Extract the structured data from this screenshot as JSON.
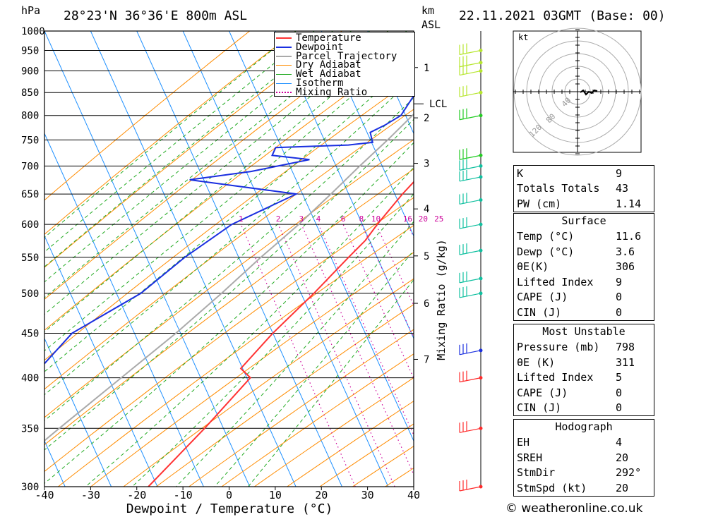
{
  "header": {
    "pressure_unit": "hPa",
    "location": "28°23'N  36°36'E  800m  ASL",
    "height_unit_km": "km",
    "height_unit_asl": "ASL",
    "datetime": "22.11.2021  03GMT  (Base: 00)"
  },
  "footer": {
    "copyright": "© weatheronline.co.uk"
  },
  "colors": {
    "temperature": "#ff3333",
    "dewpoint": "#1a2fe0",
    "parcel": "#aaaaaa",
    "dry_adiabat": "#ff8c00",
    "wet_adiabat": "#22aa22",
    "isotherm": "#1e90ff",
    "mixing_ratio": "#cc0099"
  },
  "chart_data": {
    "type": "skew-t",
    "xlabel": "Dewpoint / Temperature (°C)",
    "ylabel_left": "hPa",
    "mixing_ratio_label": "Mixing Ratio (g/kg)",
    "xlim": [
      -40,
      40
    ],
    "ylim": [
      1000,
      300
    ],
    "x_ticks": [
      "-40",
      "-30",
      "-20",
      "-10",
      "0",
      "10",
      "20",
      "30",
      "40"
    ],
    "pressure_levels": [
      300,
      350,
      400,
      450,
      500,
      550,
      600,
      650,
      700,
      750,
      800,
      850,
      900,
      950,
      1000
    ],
    "height_ticks_km": [
      "1",
      "2",
      "3",
      "4",
      "5",
      "6",
      "7"
    ],
    "height_tick_pressures": [
      908,
      795,
      705,
      625,
      552,
      487,
      420
    ],
    "lcl_label": "LCL",
    "lcl_pressure": 825,
    "mixing_ratio_values": [
      "1",
      "2",
      "3",
      "4",
      "6",
      "8",
      "10",
      "16",
      "20",
      "25"
    ],
    "legend": [
      "Temperature",
      "Dewpoint",
      "Parcel Trajectory",
      "Dry Adiabat",
      "Wet Adiabat",
      "Isotherm",
      "Mixing Ratio"
    ],
    "series": [
      {
        "name": "Temperature",
        "points": [
          [
            920,
            15.5
          ],
          [
            900,
            15.0
          ],
          [
            850,
            13.0
          ],
          [
            800,
            10.5
          ],
          [
            770,
            9.5
          ],
          [
            750,
            9.0
          ],
          [
            735,
            8.5
          ],
          [
            720,
            10.5
          ],
          [
            700,
            11.0
          ],
          [
            675,
            10.5
          ],
          [
            650,
            9.0
          ],
          [
            600,
            6.5
          ],
          [
            575,
            5.5
          ],
          [
            550,
            3.5
          ],
          [
            500,
            -0.5
          ],
          [
            450,
            -5.5
          ],
          [
            410,
            -9.0
          ],
          [
            400,
            -6.0
          ],
          [
            350,
            -11.0
          ],
          [
            300,
            -17.5
          ]
        ]
      },
      {
        "name": "Dewpoint",
        "points": [
          [
            920,
            5.5
          ],
          [
            900,
            5.0
          ],
          [
            850,
            2.0
          ],
          [
            800,
            1.0
          ],
          [
            780,
            -1.5
          ],
          [
            765,
            -4.0
          ],
          [
            745,
            -2.5
          ],
          [
            740,
            -7.5
          ],
          [
            735,
            -23.0
          ],
          [
            720,
            -23.0
          ],
          [
            712,
            -14.5
          ],
          [
            690,
            -26.0
          ],
          [
            675,
            -38.5
          ],
          [
            650,
            -14.0
          ],
          [
            600,
            -25.0
          ],
          [
            550,
            -32.0
          ],
          [
            500,
            -38.0
          ],
          [
            450,
            -49.0
          ],
          [
            410,
            -52.5
          ],
          [
            400,
            -54.5
          ],
          [
            350,
            -59.0
          ],
          [
            300,
            -64.0
          ]
        ]
      },
      {
        "name": "Parcel Trajectory",
        "points": [
          [
            900,
            11.6
          ],
          [
            850,
            7.5
          ],
          [
            825,
            5.0
          ],
          [
            800,
            3.5
          ],
          [
            750,
            0.5
          ],
          [
            700,
            -3.0
          ],
          [
            650,
            -6.5
          ],
          [
            600,
            -10.5
          ],
          [
            550,
            -15.5
          ],
          [
            500,
            -20.5
          ],
          [
            450,
            -26.5
          ],
          [
            400,
            -34.0
          ],
          [
            350,
            -42.5
          ],
          [
            300,
            -52.0
          ]
        ]
      }
    ],
    "wind_levels_hpa": [
      300,
      350,
      400,
      430,
      500,
      520,
      560,
      600,
      640,
      680,
      700,
      720,
      800,
      850,
      900,
      920,
      950
    ],
    "hodograph": {
      "unit": "kt",
      "ring_labels": [
        "40",
        "80",
        "120"
      ]
    },
    "indices": [
      {
        "label": "K",
        "value": "9"
      },
      {
        "label": "Totals Totals",
        "value": "43"
      },
      {
        "label": "PW (cm)",
        "value": "1.14"
      }
    ],
    "surface": {
      "title": "Surface",
      "rows": [
        {
          "label": "Temp (°C)",
          "value": "11.6"
        },
        {
          "label": "Dewp (°C)",
          "value": "3.6"
        },
        {
          "label": "θE(K)",
          "value": "306"
        },
        {
          "label": "Lifted Index",
          "value": "9"
        },
        {
          "label": "CAPE (J)",
          "value": "0"
        },
        {
          "label": "CIN (J)",
          "value": "0"
        }
      ]
    },
    "most_unstable": {
      "title": "Most Unstable",
      "rows": [
        {
          "label": "Pressure (mb)",
          "value": "798"
        },
        {
          "label": "θE (K)",
          "value": "311"
        },
        {
          "label": "Lifted Index",
          "value": "5"
        },
        {
          "label": "CAPE (J)",
          "value": "0"
        },
        {
          "label": "CIN (J)",
          "value": "0"
        }
      ]
    },
    "hodograph_params": {
      "title": "Hodograph",
      "rows": [
        {
          "label": "EH",
          "value": "4"
        },
        {
          "label": "SREH",
          "value": "20"
        },
        {
          "label": "StmDir",
          "value": "292°"
        },
        {
          "label": "StmSpd (kt)",
          "value": "20"
        }
      ]
    }
  }
}
